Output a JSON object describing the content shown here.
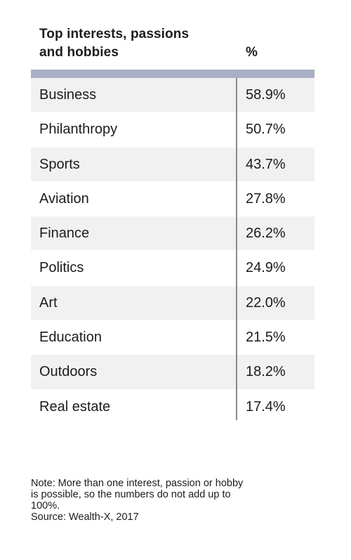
{
  "chart_data": {
    "type": "table",
    "columns": [
      "Top interests, passions and hobbies",
      "%"
    ],
    "header": {
      "title_line1": "Top interests, passions",
      "title_line2": "and hobbies",
      "value_header": "%"
    },
    "rows": [
      {
        "label": "Business",
        "value": "58.9%"
      },
      {
        "label": "Philanthropy",
        "value": "50.7%"
      },
      {
        "label": "Sports",
        "value": "43.7%"
      },
      {
        "label": "Aviation",
        "value": "27.8%"
      },
      {
        "label": "Finance",
        "value": "26.2%"
      },
      {
        "label": "Politics",
        "value": "24.9%"
      },
      {
        "label": "Art",
        "value": "22.0%"
      },
      {
        "label": "Education",
        "value": "21.5%"
      },
      {
        "label": "Outdoors",
        "value": "18.2%"
      },
      {
        "label": "Real estate",
        "value": "17.4%"
      }
    ]
  },
  "footnote": {
    "note_line1": "Note: More than one interest, passion or hobby",
    "note_line2": "is possible, so the numbers do not add up to",
    "note_line3": "100%.",
    "source": "Source: Wealth-X, 2017"
  },
  "colors": {
    "header_rule": "#a9afc4",
    "row_shade": "#f1f1f1",
    "divider": "#8a8a8a"
  }
}
